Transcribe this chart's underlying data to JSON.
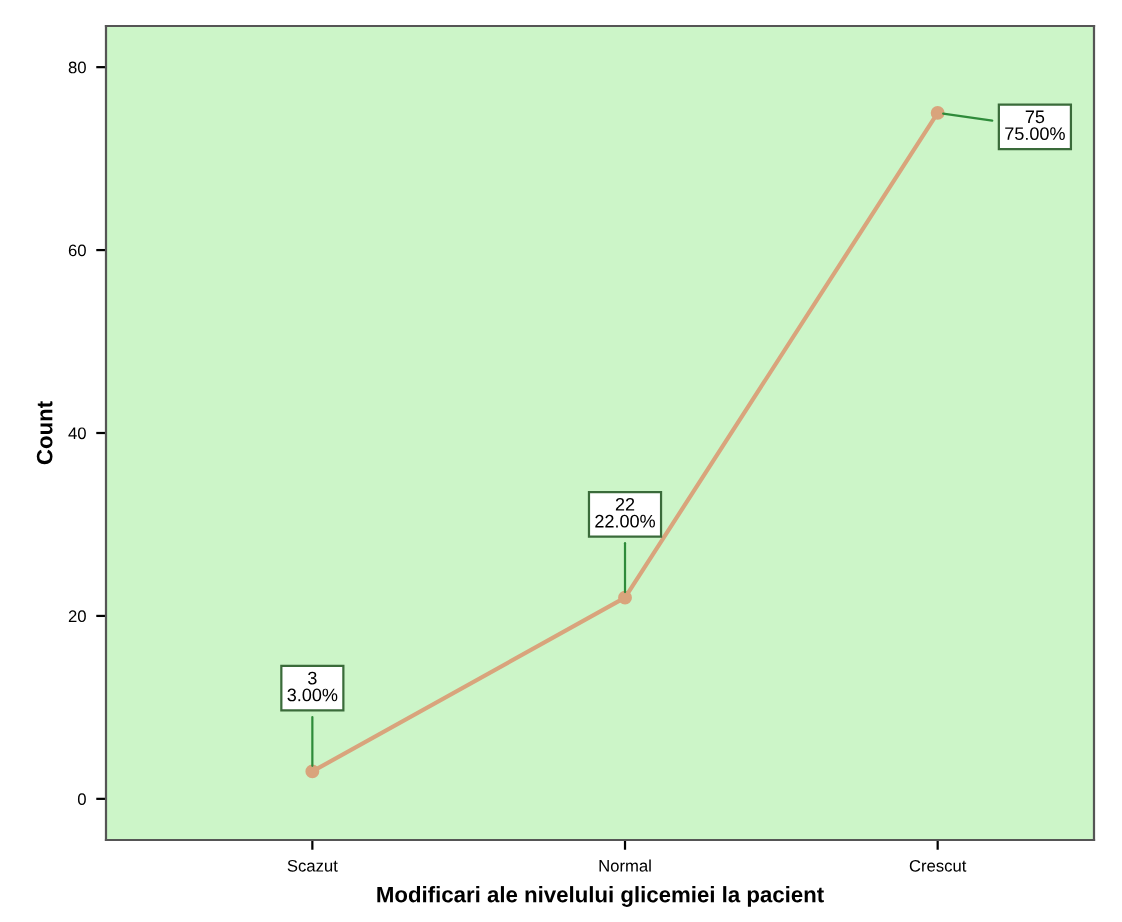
{
  "chart_data": {
    "type": "line",
    "xlabel": "Modificari ale nivelului glicemiei la pacient",
    "ylabel": "Count",
    "categories": [
      "Scazut",
      "Normal",
      "Crescut"
    ],
    "values": [
      3,
      22,
      75
    ],
    "value_labels": [
      "3\n3.00%",
      "22\n22.00%",
      "75\n75.00%"
    ],
    "color": "#d9a47c",
    "marker": "circle",
    "line_style": "solid",
    "ylim": [
      -4.5,
      84.5
    ],
    "yticks": [
      0,
      20,
      40,
      60,
      80
    ],
    "grid": false
  }
}
